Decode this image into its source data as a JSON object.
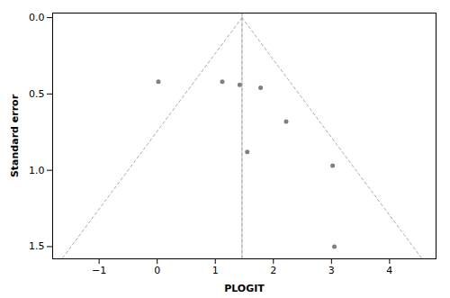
{
  "chart_data": {
    "type": "scatter",
    "xlabel": "PLOGIT",
    "ylabel": "Standard error",
    "xlim": [
      -1.8,
      4.8
    ],
    "ylim": [
      1.58,
      -0.03
    ],
    "xticks": [
      -1,
      0,
      1,
      2,
      3,
      4
    ],
    "yticks": [
      {
        "value": 0.0,
        "label": "0.0"
      },
      {
        "value": 0.5,
        "label": "0.5"
      },
      {
        "value": 1.0,
        "label": "1.0"
      },
      {
        "value": 1.5,
        "label": "1.5"
      }
    ],
    "grid": false,
    "series": [
      {
        "type": "vline",
        "x": 1.46,
        "color": "#c0c0c0",
        "line_style": "solid"
      },
      {
        "type": "line",
        "x": [
          1.46,
          -1.64
        ],
        "values": [
          0,
          1.58
        ],
        "color": "#aaaaaa",
        "line_style": "dotted"
      },
      {
        "type": "line",
        "x": [
          1.46,
          4.56
        ],
        "values": [
          0,
          1.58
        ],
        "color": "#aaaaaa",
        "line_style": "dotted"
      },
      {
        "type": "vline",
        "x": 1.46,
        "color": "#aaaaaa",
        "line_style": "dotted"
      },
      {
        "type": "scatter",
        "x": [
          0.02,
          1.12,
          1.42,
          1.78,
          2.22,
          1.55,
          3.02,
          3.05
        ],
        "values": [
          0.42,
          0.42,
          0.44,
          0.46,
          0.68,
          0.88,
          0.97,
          1.5
        ],
        "color": "#7f7f7f"
      }
    ]
  }
}
